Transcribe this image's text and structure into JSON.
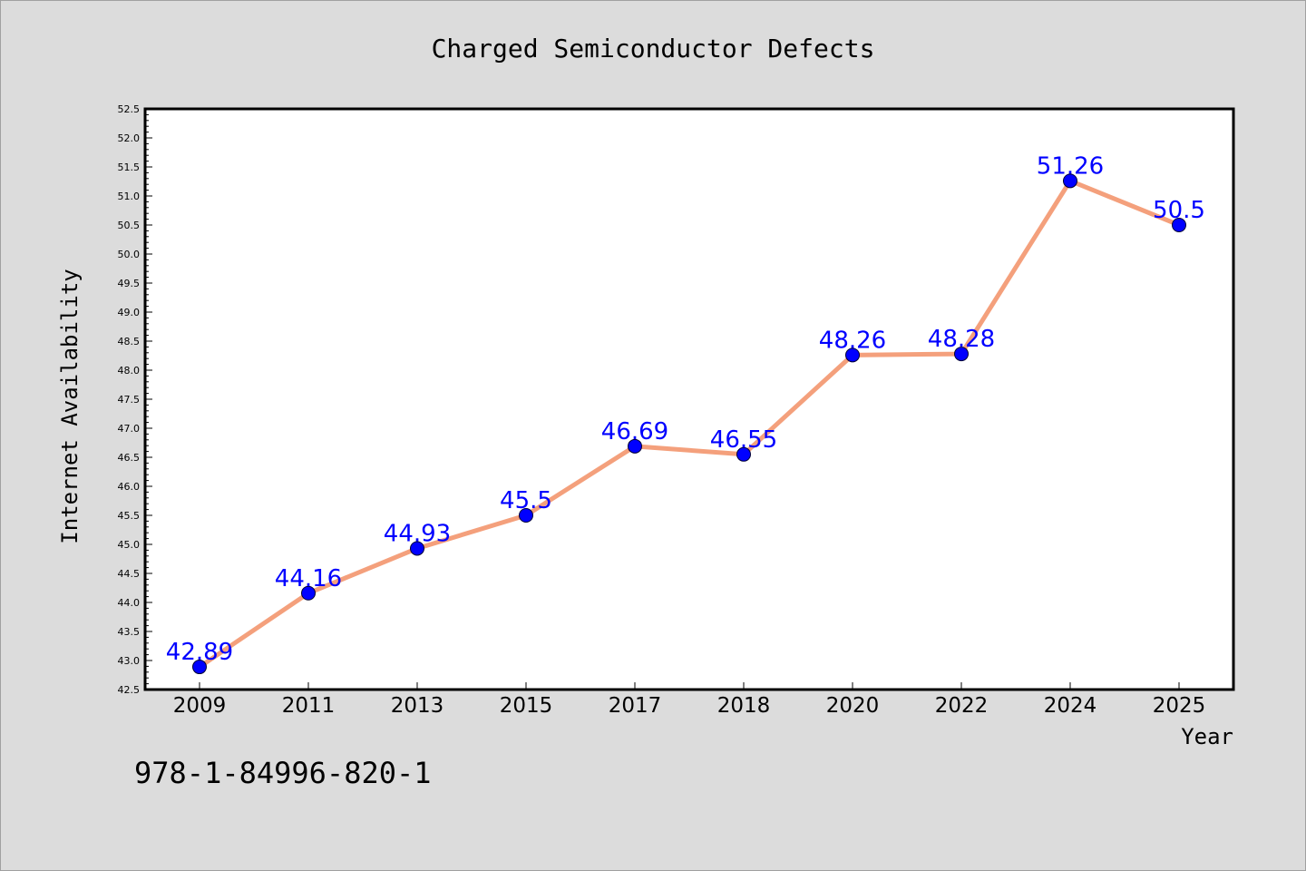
{
  "chart_data": {
    "type": "line",
    "title": "Charged Semiconductor Defects",
    "xlabel": "Year",
    "ylabel": "Internet Availability",
    "categories": [
      "2009",
      "2011",
      "2013",
      "2015",
      "2017",
      "2018",
      "2020",
      "2022",
      "2024",
      "2025"
    ],
    "series": [
      {
        "values": [
          42.89,
          44.16,
          44.93,
          45.5,
          46.69,
          46.55,
          48.26,
          48.28,
          51.26,
          50.5
        ],
        "labels": [
          "42.89",
          "44.16",
          "44.93",
          "45.5",
          "46.69",
          "46.55",
          "48.26",
          "48.28",
          "51.26",
          "50.5"
        ],
        "line_color": "#f4a07c",
        "marker_color": "#0000ff"
      }
    ],
    "ylim": [
      42.5,
      52.5
    ],
    "ytick_step": 0.5,
    "grid": false,
    "legend": "none",
    "note": "978-1-84996-820-1"
  },
  "colors": {
    "background": "#dcdcdc",
    "plot_area": "#ffffff",
    "line": "#f4a07c",
    "marker": "#0000ff",
    "data_label": "#0000ff"
  }
}
